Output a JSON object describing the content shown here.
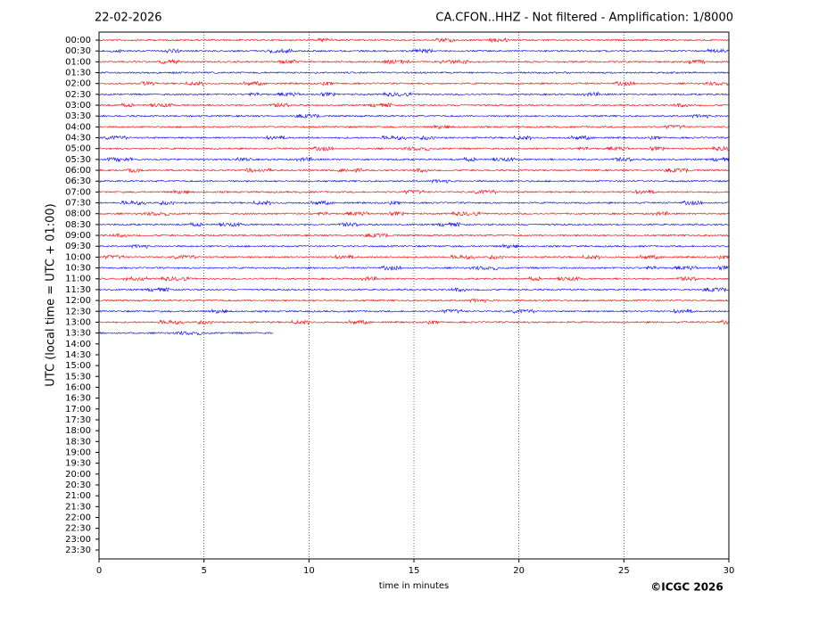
{
  "chart_data": {
    "type": "helicorder",
    "date": "22-02-2026",
    "title": "CA.CFON..HHZ - Not filtered - Amplification: 1/8000",
    "xlabel": "time in minutes",
    "ylabel": "UTC (local time = UTC + 01:00)",
    "credit": "©ICGC 2026",
    "xlim": [
      0,
      30
    ],
    "xticks": [
      0,
      5,
      10,
      15,
      20,
      25,
      30
    ],
    "grid": true,
    "colors": [
      "#ff0000",
      "#0000ff"
    ],
    "categories": [
      "00:00",
      "00:30",
      "01:00",
      "01:30",
      "02:00",
      "02:30",
      "03:00",
      "03:30",
      "04:00",
      "04:30",
      "05:00",
      "05:30",
      "06:00",
      "06:30",
      "07:00",
      "07:30",
      "08:00",
      "08:30",
      "09:00",
      "09:30",
      "10:00",
      "10:30",
      "11:00",
      "11:30",
      "12:00",
      "12:30",
      "13:00",
      "13:30",
      "14:00",
      "14:30",
      "15:00",
      "15:30",
      "16:00",
      "16:30",
      "17:00",
      "17:30",
      "18:00",
      "18:30",
      "19:00",
      "19:30",
      "20:00",
      "20:30",
      "21:00",
      "21:30",
      "22:00",
      "22:30",
      "23:00",
      "23:30"
    ],
    "values": [
      30,
      30,
      30,
      30,
      30,
      30,
      30,
      30,
      30,
      30,
      30,
      30,
      30,
      30,
      30,
      30,
      30,
      30,
      30,
      30,
      30,
      30,
      30,
      30,
      30,
      30,
      30,
      8.3,
      null,
      null,
      null,
      null,
      null,
      null,
      null,
      null,
      null,
      null,
      null,
      null,
      null,
      null,
      null,
      null,
      null,
      null,
      null,
      null
    ]
  }
}
